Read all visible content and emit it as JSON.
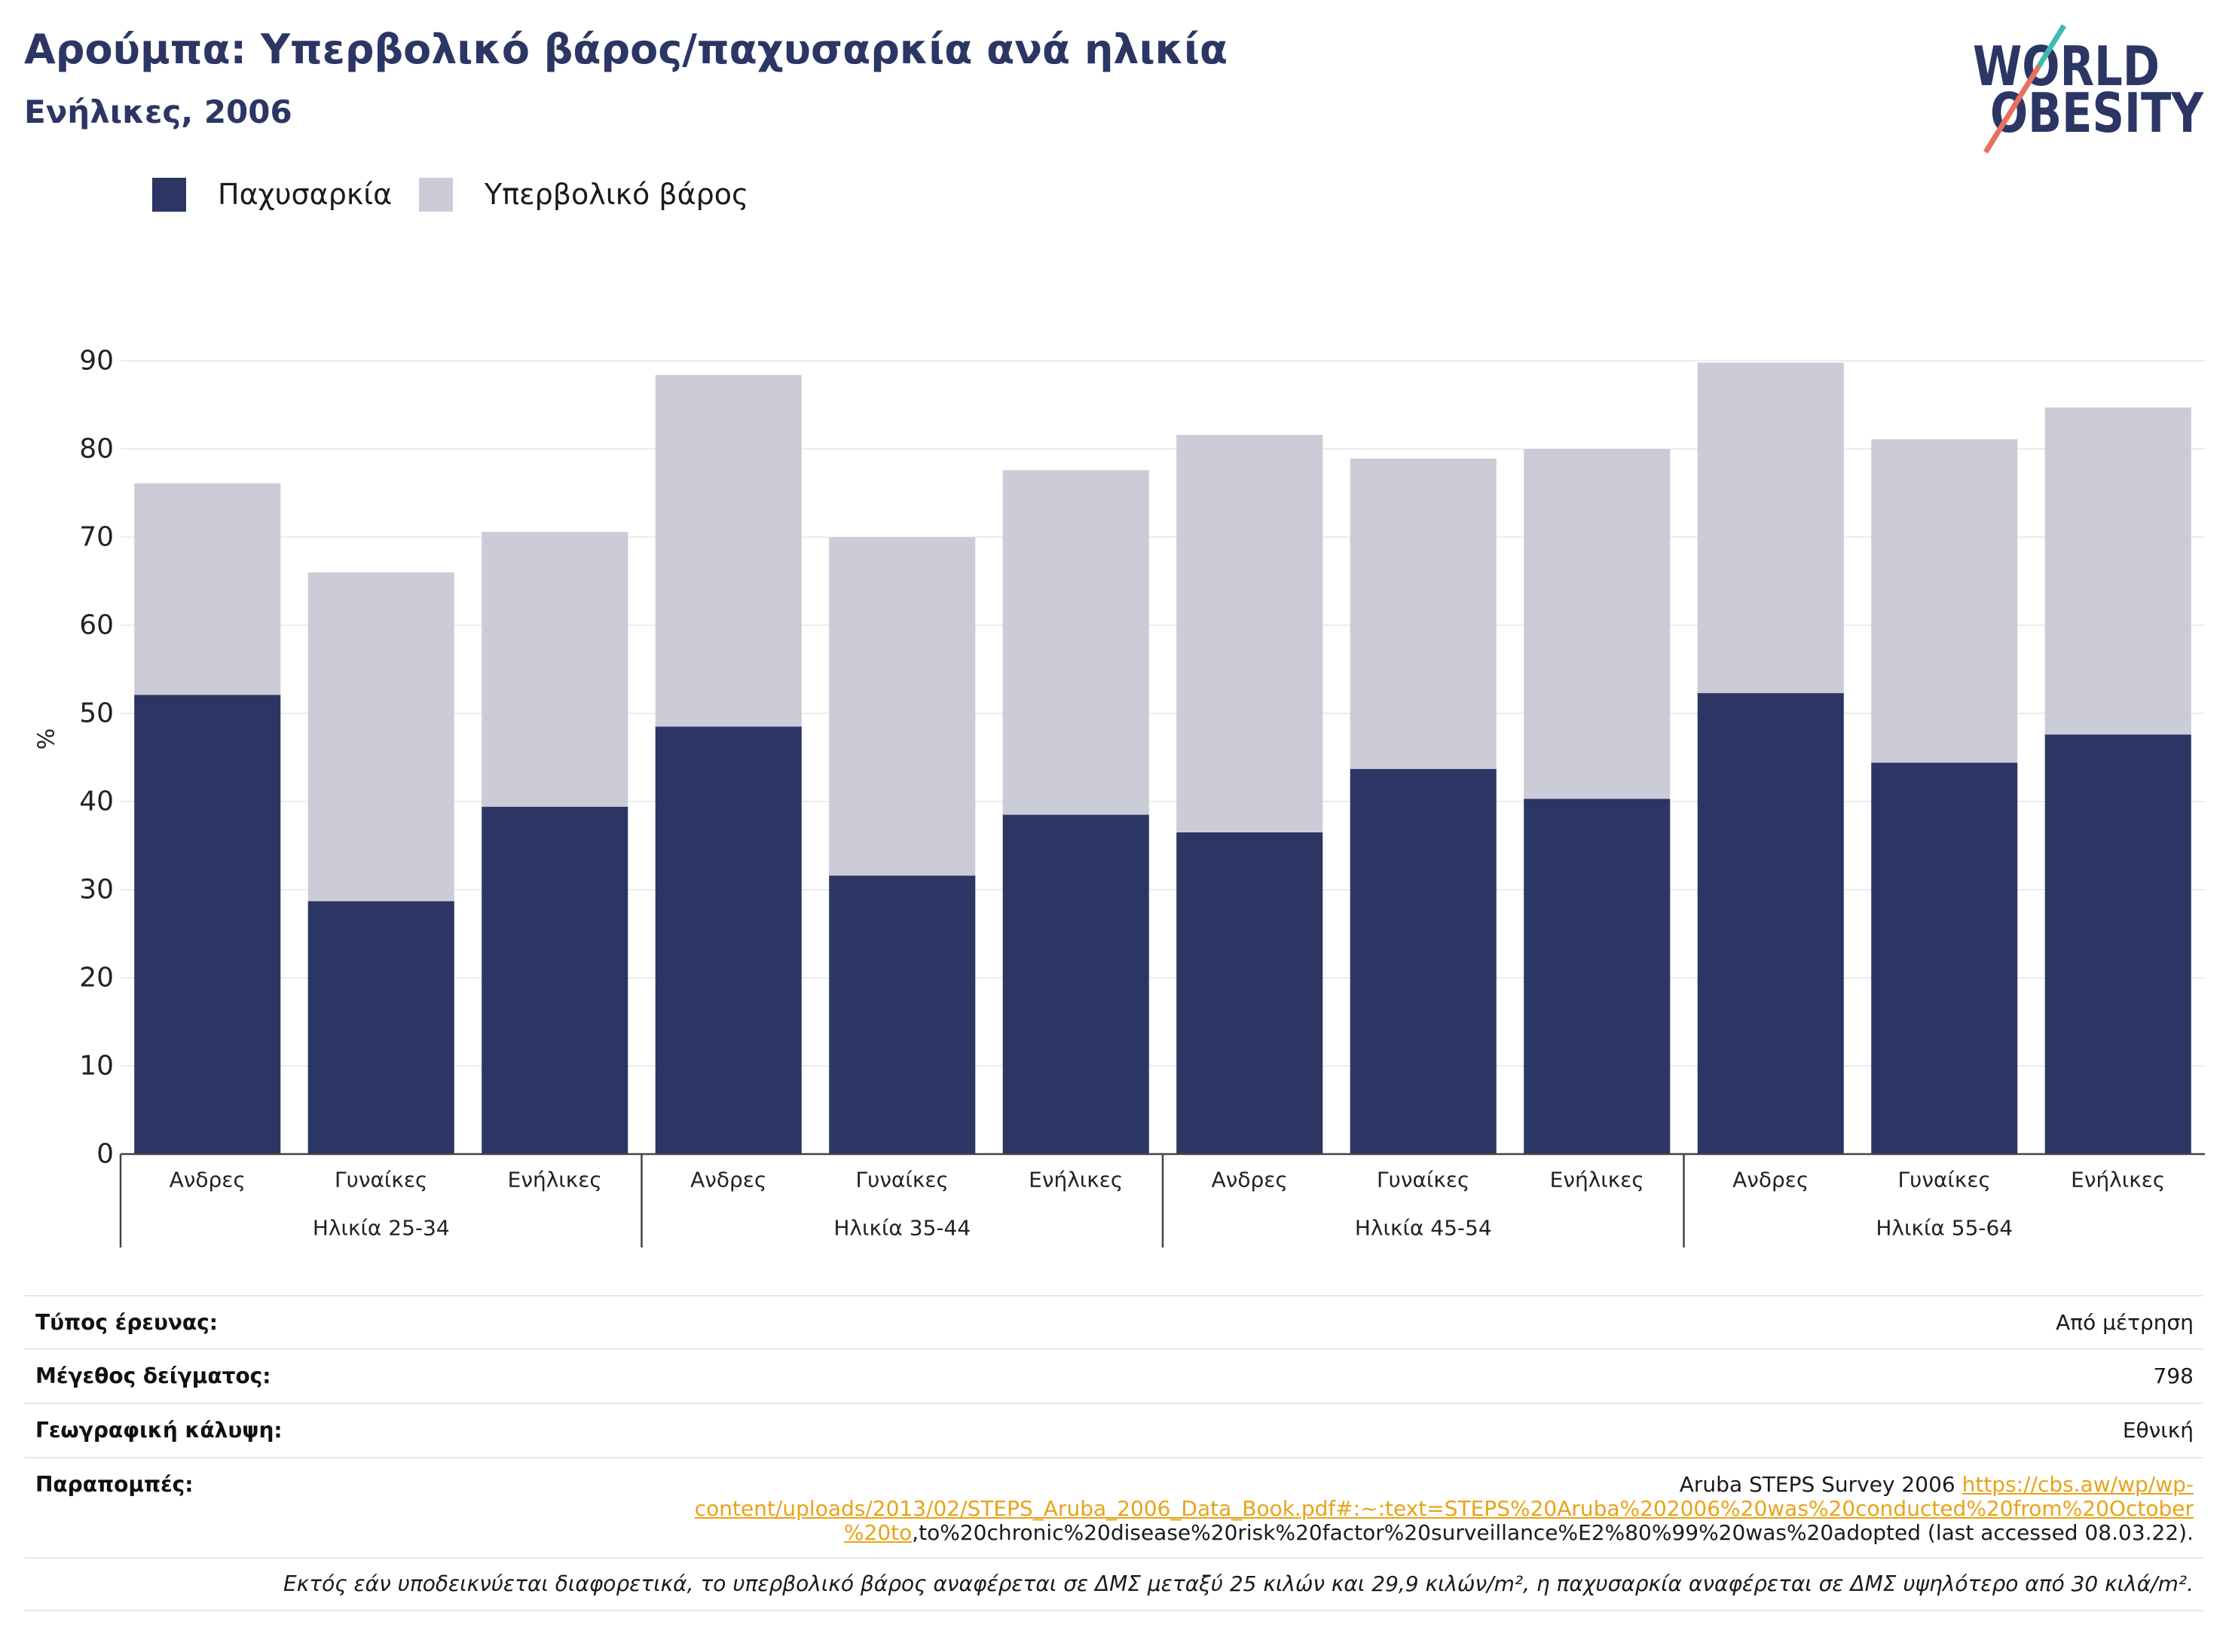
{
  "colors": {
    "brand_navy": "#2b3664",
    "logo_teal": "#3dbab3",
    "logo_coral": "#e8705f",
    "link": "#e8a317",
    "gridline": "#ececef"
  },
  "logo": {
    "line1": "WORLD",
    "line2": "OBESITY"
  },
  "chart_data": {
    "type": "bar",
    "stacked": true,
    "title": "Αρούμπα: Υπερβολικό βάρος/παχυσαρκία ανά ηλικία",
    "subtitle": "Ενήλικες, 2006",
    "xlabel": "",
    "ylabel": "%",
    "ylim": [
      0,
      90
    ],
    "yticks": [
      0,
      10,
      20,
      30,
      40,
      50,
      60,
      70,
      80,
      90
    ],
    "grid": true,
    "legend_position": "top-left",
    "categories": [
      "Ανδρες",
      "Γυναίκες",
      "Ενήλικες",
      "Ανδρες",
      "Γυναίκες",
      "Ενήλικες",
      "Ανδρες",
      "Γυναίκες",
      "Ενήλικες",
      "Ανδρες",
      "Γυναίκες",
      "Ενήλικες"
    ],
    "category_groups": [
      "Ηλικία 25-34",
      "Ηλικία 35-44",
      "Ηλικία 45-54",
      "Ηλικία 55-64"
    ],
    "series": [
      {
        "name": "Παχυσαρκία",
        "color": "#2b3664",
        "values": [
          52.1,
          28.7,
          39.4,
          48.5,
          31.6,
          38.5,
          36.5,
          43.7,
          40.3,
          52.3,
          44.4,
          47.6
        ]
      },
      {
        "name": "Υπερβολικό βάρος",
        "color": "#cbccd8",
        "values": [
          24.0,
          37.3,
          31.2,
          39.9,
          38.4,
          39.1,
          45.1,
          35.2,
          39.7,
          37.5,
          36.7,
          37.1
        ]
      }
    ]
  },
  "info": {
    "rows": [
      {
        "label": "Τύπος έρευνας:",
        "value": "Από μέτρηση"
      },
      {
        "label": "Μέγεθος δείγματος:",
        "value": "798"
      },
      {
        "label": "Γεωγραφική κάλυψη:",
        "value": "Εθνική"
      }
    ],
    "references": {
      "label": "Παραπομπές:",
      "line1_text": "Aruba STEPS Survey 2006 ",
      "line1_link": "https://cbs.aw/wp/wp-",
      "line2_link": "content/uploads/2013/02/STEPS_Aruba_2006_Data_Book.pdf#:~:text=STEPS%20Aruba%202006%20was%20conducted%20from%20October",
      "line3_link": "%20to",
      "line3_text": ",to%20chronic%20disease%20risk%20factor%20surveillance%E2%80%99%20was%20adopted (last accessed 08.03.22)."
    },
    "note": "Εκτός εάν υποδεικνύεται διαφορετικά, το υπερβολικό βάρος αναφέρεται σε ΔΜΣ μεταξύ 25 κιλών και 29,9 κιλών/m², η παχυσαρκία αναφέρεται σε ΔΜΣ υψηλότερο από 30 κιλά/m²."
  }
}
